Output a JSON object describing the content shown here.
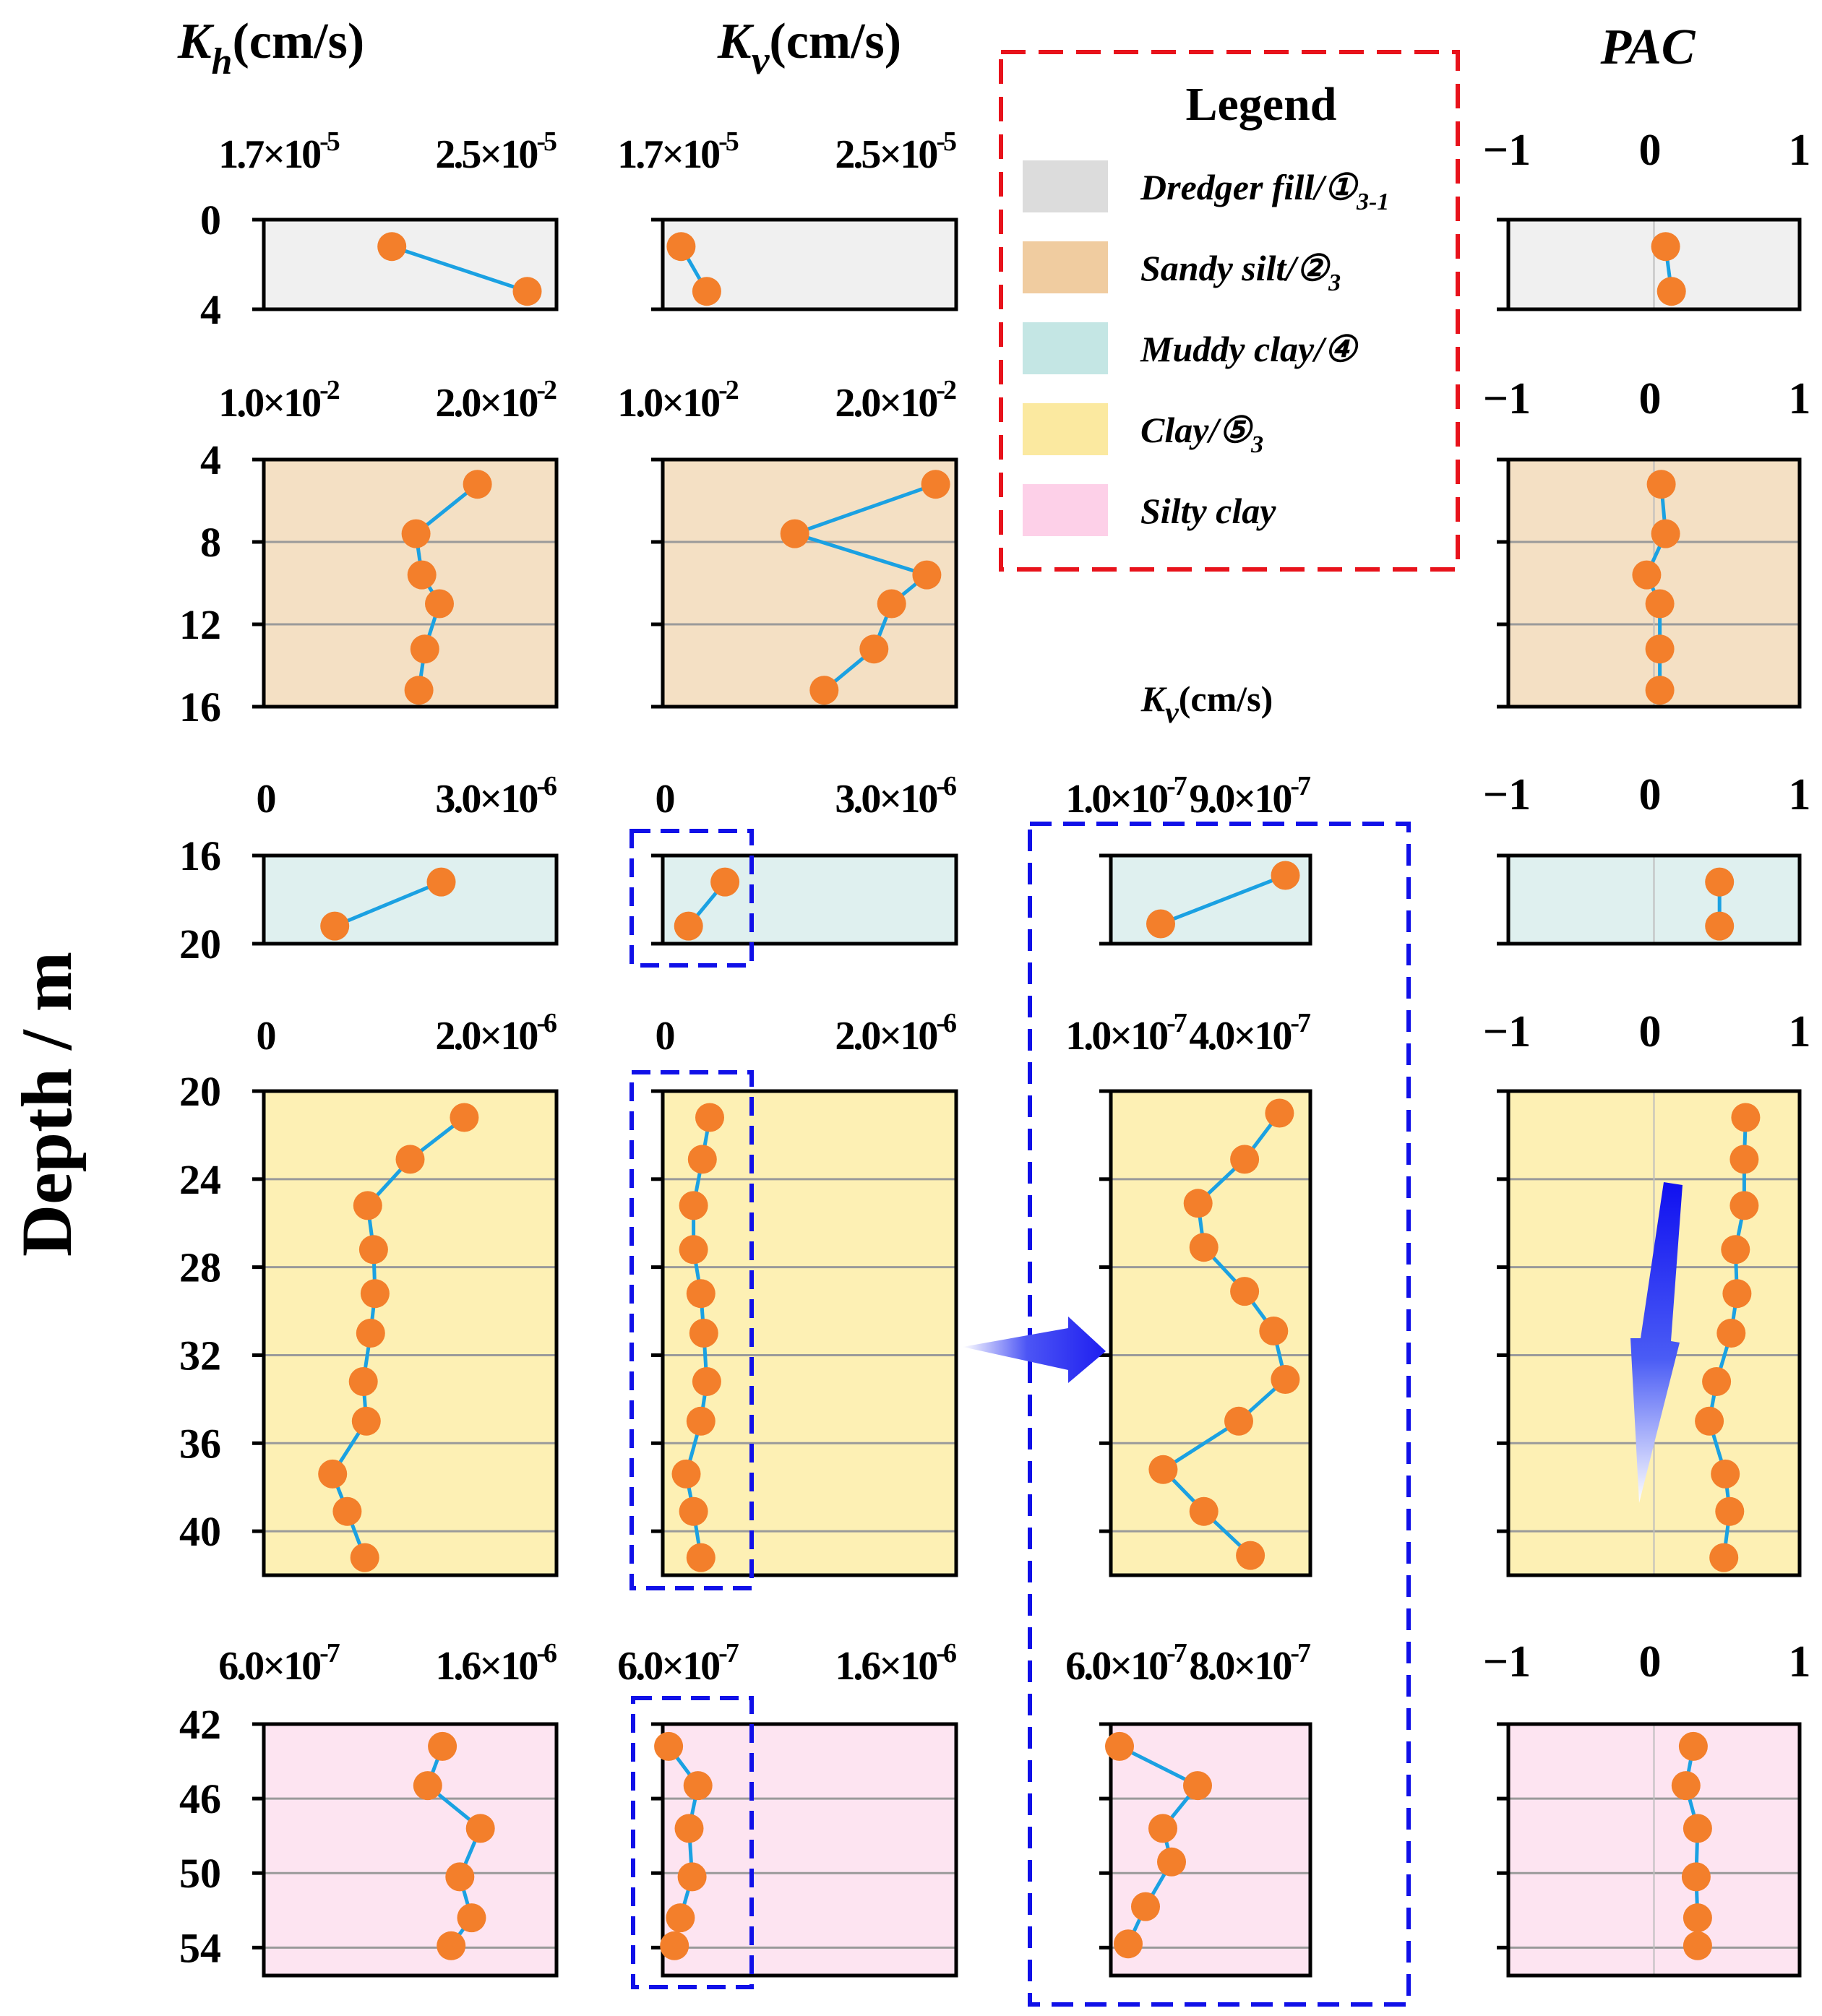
{
  "chart_data": {
    "type": "scatter",
    "title": "",
    "ylabel": "Depth / m",
    "column_titles": {
      "kh": {
        "symbol": "K",
        "sub": "h",
        "unit": "(cm/s)"
      },
      "kv": {
        "symbol": "K",
        "sub": "v",
        "unit": "(cm/s)"
      },
      "kv_zoom": {
        "symbol": "K",
        "sub": "v",
        "unit": "(cm/s)"
      },
      "pac": {
        "label": "PAC"
      }
    },
    "legend": {
      "title": "Legend",
      "position": "top-right",
      "items": [
        {
          "text": "Dredger fill/①",
          "sub": "3-1",
          "color": "#dcdcdc"
        },
        {
          "text": "Sandy silt/②",
          "sub": "3",
          "color": "#f0cca0"
        },
        {
          "text": "Muddy clay/④",
          "sub": "",
          "color": "#c4e6e4"
        },
        {
          "text": "Clay/⑤",
          "sub": "3",
          "color": "#fbe9a0"
        },
        {
          "text": "Silty clay",
          "sub": "",
          "color": "#fdd0e8"
        }
      ]
    },
    "layers": [
      {
        "id": "dredger-fill",
        "fill": "#f0f0f0",
        "ylim": [
          0,
          4
        ],
        "yticks": [
          0,
          4
        ],
        "kh": {
          "xlim": [
            1.7e-05,
            2.5e-05
          ],
          "tick_labels": [
            {
              "m": "1.7",
              "e": "-5"
            },
            {
              "m": "2.5",
              "e": "-5"
            }
          ],
          "x": [
            2.05e-05,
            2.42e-05
          ],
          "depth": [
            1.2,
            3.2
          ]
        },
        "kv": {
          "xlim": [
            1.7e-05,
            2.5e-05
          ],
          "tick_labels": [
            {
              "m": "1.7",
              "e": "-5"
            },
            {
              "m": "2.5",
              "e": "-5"
            }
          ],
          "x": [
            1.75e-05,
            1.82e-05
          ],
          "depth": [
            1.2,
            3.2
          ]
        },
        "pac": {
          "x": [
            0.08,
            0.12
          ],
          "depth": [
            1.2,
            3.2
          ]
        }
      },
      {
        "id": "sandy-silt",
        "fill": "#f4e0c4",
        "ylim": [
          4,
          16
        ],
        "yticks": [
          4,
          8,
          12,
          16
        ],
        "kh": {
          "xlim": [
            0.01,
            0.02
          ],
          "tick_labels": [
            {
              "m": "1.0",
              "e": "-2"
            },
            {
              "m": "2.0",
              "e": "-2"
            }
          ],
          "x": [
            0.0173,
            0.0152,
            0.0154,
            0.016,
            0.0155,
            0.0153
          ],
          "depth": [
            5.2,
            7.6,
            9.6,
            11.0,
            13.2,
            15.2
          ]
        },
        "kv": {
          "xlim": [
            0.01,
            0.02
          ],
          "tick_labels": [
            {
              "m": "1.0",
              "e": "-2"
            },
            {
              "m": "2.0",
              "e": "-2"
            }
          ],
          "x": [
            0.0193,
            0.0145,
            0.019,
            0.0178,
            0.0172,
            0.0155
          ],
          "depth": [
            5.2,
            7.6,
            9.6,
            11.0,
            13.2,
            15.2
          ]
        },
        "pac": {
          "x": [
            0.05,
            0.08,
            -0.05,
            0.04,
            0.04,
            0.04
          ],
          "depth": [
            5.2,
            7.6,
            9.6,
            11.0,
            13.2,
            15.2
          ]
        }
      },
      {
        "id": "muddy-clay",
        "fill": "#dff0ef",
        "ylim": [
          16,
          20
        ],
        "yticks": [
          16,
          20
        ],
        "kh": {
          "xlim": [
            0,
            3.3e-06
          ],
          "tick_labels": [
            {
              "m": "0",
              "e": ""
            },
            {
              "m": "3.0",
              "e": "-6"
            }
          ],
          "x": [
            2e-06,
            8e-07
          ],
          "depth": [
            17.2,
            19.2
          ]
        },
        "kv": {
          "xlim": [
            0,
            3.3e-06
          ],
          "tick_labels": [
            {
              "m": "0",
              "e": ""
            },
            {
              "m": "3.0",
              "e": "-6"
            }
          ],
          "x": [
            7e-07,
            2.9e-07
          ],
          "depth": [
            17.2,
            19.2
          ]
        },
        "kv_zoom": {
          "xlim": [
            1e-07,
            9e-07
          ],
          "tick_labels": [
            {
              "m": "1.0",
              "e": "-7"
            },
            {
              "m": "9.0",
              "e": "-7"
            }
          ],
          "x": [
            8e-07,
            3e-07
          ],
          "depth": [
            16.9,
            19.1
          ]
        },
        "pac": {
          "x": [
            0.45,
            0.45
          ],
          "depth": [
            17.2,
            19.2
          ]
        }
      },
      {
        "id": "clay",
        "fill": "#fdf0b4",
        "ylim": [
          20,
          42
        ],
        "yticks": [
          20,
          24,
          28,
          32,
          36,
          40
        ],
        "kh": {
          "xlim": [
            0,
            2e-06
          ],
          "tick_labels": [
            {
              "m": "0",
              "e": ""
            },
            {
              "m": "2.0",
              "e": "-6"
            }
          ],
          "x": [
            1.37e-06,
            1e-06,
            7.1e-07,
            7.5e-07,
            7.6e-07,
            7.3e-07,
            6.8e-07,
            7e-07,
            4.7e-07,
            5.7e-07,
            6.9e-07
          ],
          "depth": [
            21.2,
            23.1,
            25.2,
            27.2,
            29.2,
            31.0,
            33.2,
            35.0,
            37.4,
            39.1,
            41.2
          ]
        },
        "kv": {
          "xlim": [
            0,
            2e-06
          ],
          "tick_labels": [
            {
              "m": "0",
              "e": ""
            },
            {
              "m": "2.0",
              "e": "-6"
            }
          ],
          "x": [
            3.2e-07,
            2.7e-07,
            2.1e-07,
            2.1e-07,
            2.6e-07,
            2.8e-07,
            3e-07,
            2.6e-07,
            1.6e-07,
            2.1e-07,
            2.6e-07
          ],
          "depth": [
            21.2,
            23.1,
            25.2,
            27.2,
            29.2,
            31.0,
            33.2,
            35.0,
            37.4,
            39.1,
            41.2
          ]
        },
        "kv_zoom": {
          "xlim": [
            1e-07,
            4.43e-07
          ],
          "tick_labels": [
            {
              "m": "1.0",
              "e": "-7"
            },
            {
              "m": "4.0",
              "e": "-7"
            }
          ],
          "x": [
            3.9e-07,
            3.3e-07,
            2.5e-07,
            2.6e-07,
            3.3e-07,
            3.8e-07,
            4e-07,
            3.2e-07,
            1.9e-07,
            2.6e-07,
            3.4e-07
          ],
          "depth": [
            21.0,
            23.1,
            25.1,
            27.1,
            29.1,
            30.9,
            33.1,
            35.0,
            37.2,
            39.1,
            41.1
          ]
        },
        "pac": {
          "x": [
            0.63,
            0.62,
            0.62,
            0.56,
            0.57,
            0.53,
            0.43,
            0.38,
            0.49,
            0.52,
            0.48
          ],
          "depth": [
            21.2,
            23.1,
            25.2,
            27.2,
            29.2,
            31.0,
            33.2,
            35.0,
            37.4,
            39.1,
            41.2
          ]
        }
      },
      {
        "id": "silty-clay",
        "fill": "#fde4f1",
        "ylim": [
          42,
          55.5
        ],
        "yticks": [
          42,
          46,
          50,
          54
        ],
        "kh": {
          "xlim": [
            6e-07,
            1.6e-06
          ],
          "tick_labels": [
            {
              "m": "6.0",
              "e": "-7"
            },
            {
              "m": "1.6",
              "e": "-6"
            }
          ],
          "x": [
            1.21e-06,
            1.16e-06,
            1.34e-06,
            1.27e-06,
            1.31e-06,
            1.24e-06
          ],
          "depth": [
            43.2,
            45.3,
            47.6,
            50.2,
            52.4,
            53.9
          ]
        },
        "kv": {
          "xlim": [
            6e-07,
            1.6e-06
          ],
          "tick_labels": [
            {
              "m": "6.0",
              "e": "-7"
            },
            {
              "m": "1.6",
              "e": "-6"
            }
          ],
          "x": [
            6.2e-07,
            7.2e-07,
            6.9e-07,
            7e-07,
            6.6e-07,
            6.4e-07
          ],
          "depth": [
            43.2,
            45.3,
            47.6,
            50.2,
            52.4,
            53.9
          ]
        },
        "kv_zoom": {
          "xlim": [
            6e-07,
            8.3e-07
          ],
          "tick_labels": [
            {
              "m": "6.0",
              "e": "-7"
            },
            {
              "m": "8.0",
              "e": "-7"
            }
          ],
          "x": [
            6.1e-07,
            7e-07,
            6.6e-07,
            6.7e-07,
            6.4e-07,
            6.2e-07
          ],
          "depth": [
            43.2,
            45.3,
            47.6,
            49.4,
            51.8,
            53.8
          ]
        },
        "pac": {
          "x": [
            0.27,
            0.22,
            0.3,
            0.29,
            0.3,
            0.3
          ],
          "depth": [
            43.2,
            45.3,
            47.6,
            50.2,
            52.4,
            53.9
          ]
        }
      }
    ],
    "pac_axis": {
      "xlim": [
        -1,
        1
      ],
      "tick_labels": [
        "−1",
        "0",
        "1"
      ]
    },
    "marker_color": "#f37f2b",
    "line_color": "#1ba1e2",
    "highlight_color": "#1010e8",
    "legend_border_color": "#e8121b"
  }
}
